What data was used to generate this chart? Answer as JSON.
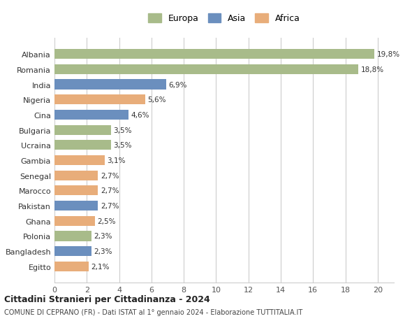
{
  "categories": [
    "Egitto",
    "Bangladesh",
    "Polonia",
    "Ghana",
    "Pakistan",
    "Marocco",
    "Senegal",
    "Gambia",
    "Ucraina",
    "Bulgaria",
    "Cina",
    "Nigeria",
    "India",
    "Romania",
    "Albania"
  ],
  "values": [
    2.1,
    2.3,
    2.3,
    2.5,
    2.7,
    2.7,
    2.7,
    3.1,
    3.5,
    3.5,
    4.6,
    5.6,
    6.9,
    18.8,
    19.8
  ],
  "labels": [
    "2,1%",
    "2,3%",
    "2,3%",
    "2,5%",
    "2,7%",
    "2,7%",
    "2,7%",
    "3,1%",
    "3,5%",
    "3,5%",
    "4,6%",
    "5,6%",
    "6,9%",
    "18,8%",
    "19,8%"
  ],
  "continents": [
    "Africa",
    "Asia",
    "Europa",
    "Africa",
    "Asia",
    "Africa",
    "Africa",
    "Africa",
    "Europa",
    "Europa",
    "Asia",
    "Africa",
    "Asia",
    "Europa",
    "Europa"
  ],
  "colors": {
    "Europa": "#a8bb8a",
    "Asia": "#6b8fbe",
    "Africa": "#e8ad7a"
  },
  "legend_colors": {
    "Europa": "#a8bb8a",
    "Asia": "#6b8fbe",
    "Africa": "#e8ad7a"
  },
  "xlim": [
    0,
    21
  ],
  "xticks": [
    0,
    2,
    4,
    6,
    8,
    10,
    12,
    14,
    16,
    18,
    20
  ],
  "title1": "Cittadini Stranieri per Cittadinanza - 2024",
  "title2": "COMUNE DI CEPRANO (FR) - Dati ISTAT al 1° gennaio 2024 - Elaborazione TUTTITALIA.IT",
  "background_color": "#ffffff",
  "grid_color": "#cccccc",
  "bar_height": 0.65,
  "legend_order": [
    "Europa",
    "Asia",
    "Africa"
  ]
}
